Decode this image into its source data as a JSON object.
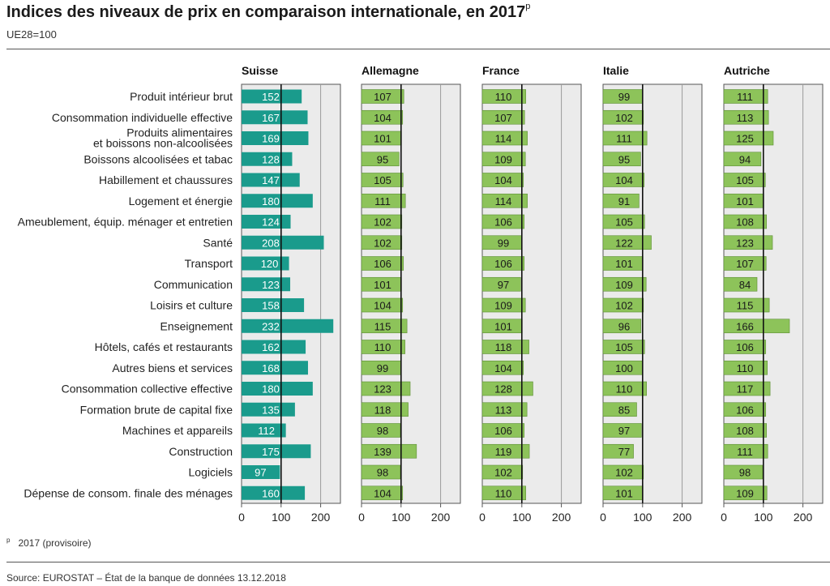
{
  "title": "Indices des niveaux de prix en comparaison internationale, en 2017",
  "title_superscript": "p",
  "subtitle": "UE28=100",
  "footnote": {
    "marker": "p",
    "text": "2017 (provisoire)"
  },
  "source": "Source: EUROSTAT – État de la banque de données 13.12.2018",
  "colors": {
    "suisse_bar": "#1a9b8c",
    "other_bar": "#8dc35a",
    "panel_bg": "#ebebeb",
    "reference_line": "#111111"
  },
  "chart_data": {
    "type": "bar",
    "orientation": "horizontal",
    "reference_value": 100,
    "xlim": [
      0,
      250
    ],
    "xticks": [
      0,
      100,
      200
    ],
    "categories": [
      "Produit intérieur brut",
      "Consommation individuelle effective",
      "Produits alimentaires\net boissons non-alcoolisées",
      "Boissons alcoolisées et tabac",
      "Habillement et chaussures",
      "Logement et énergie",
      "Ameublement, équip. ménager et entretien",
      "Santé",
      "Transport",
      "Communication",
      "Loisirs et culture",
      "Enseignement",
      "Hôtels, cafés et restaurants",
      "Autres biens et services",
      "Consommation collective effective",
      "Formation brute de capital fixe",
      "Machines et appareils",
      "Construction",
      "Logiciels",
      "Dépense de consom. finale des ménages"
    ],
    "series": [
      {
        "name": "Suisse",
        "values": [
          152,
          167,
          169,
          128,
          147,
          180,
          124,
          208,
          120,
          123,
          158,
          232,
          162,
          168,
          180,
          135,
          112,
          175,
          97,
          160
        ]
      },
      {
        "name": "Allemagne",
        "values": [
          107,
          104,
          101,
          95,
          105,
          111,
          102,
          102,
          106,
          101,
          104,
          115,
          110,
          99,
          123,
          118,
          98,
          139,
          98,
          104
        ]
      },
      {
        "name": "France",
        "values": [
          110,
          107,
          114,
          109,
          104,
          114,
          106,
          99,
          106,
          97,
          109,
          101,
          118,
          104,
          128,
          113,
          106,
          119,
          102,
          110
        ]
      },
      {
        "name": "Italie",
        "values": [
          99,
          102,
          111,
          95,
          104,
          91,
          105,
          122,
          101,
          109,
          102,
          96,
          105,
          100,
          110,
          85,
          97,
          77,
          102,
          101
        ]
      },
      {
        "name": "Autriche",
        "values": [
          111,
          113,
          125,
          94,
          105,
          101,
          108,
          123,
          107,
          84,
          115,
          166,
          106,
          110,
          117,
          106,
          108,
          111,
          98,
          109
        ]
      }
    ]
  }
}
